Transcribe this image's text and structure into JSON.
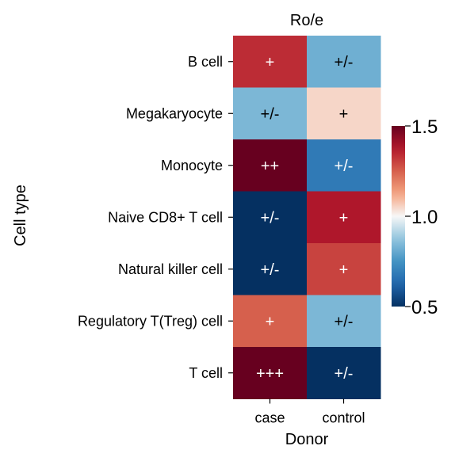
{
  "chart_data": {
    "type": "heatmap",
    "title": "Ro/e",
    "xlabel": "Donor",
    "ylabel": "Cell type",
    "columns": [
      "case",
      "control"
    ],
    "rows": [
      "B cell",
      "Megakaryocyte",
      "Monocyte",
      "Naive CD8+ T cell",
      "Natural killer cell",
      "Regulatory T(Treg) cell",
      "T cell"
    ],
    "values": [
      [
        1.34,
        0.82
      ],
      [
        0.84,
        1.05
      ],
      [
        1.55,
        0.68
      ],
      [
        0.45,
        1.38
      ],
      [
        0.42,
        1.3
      ],
      [
        1.25,
        0.84
      ],
      [
        1.62,
        0.42
      ]
    ],
    "annotations": [
      [
        "+",
        "+/-"
      ],
      [
        "+/-",
        "+"
      ],
      [
        "++",
        "+/-"
      ],
      [
        "+/-",
        "+"
      ],
      [
        "+/-",
        "+"
      ],
      [
        "+",
        "+/-"
      ],
      [
        "+++",
        "+/-"
      ]
    ],
    "colormap": "RdBu_r",
    "colorbar": {
      "vmin": 0.5,
      "vmax": 1.5,
      "ticks": [
        0.5,
        1.0,
        1.5
      ],
      "tick_labels": [
        "0.5",
        "1.0",
        "1.5"
      ]
    }
  }
}
